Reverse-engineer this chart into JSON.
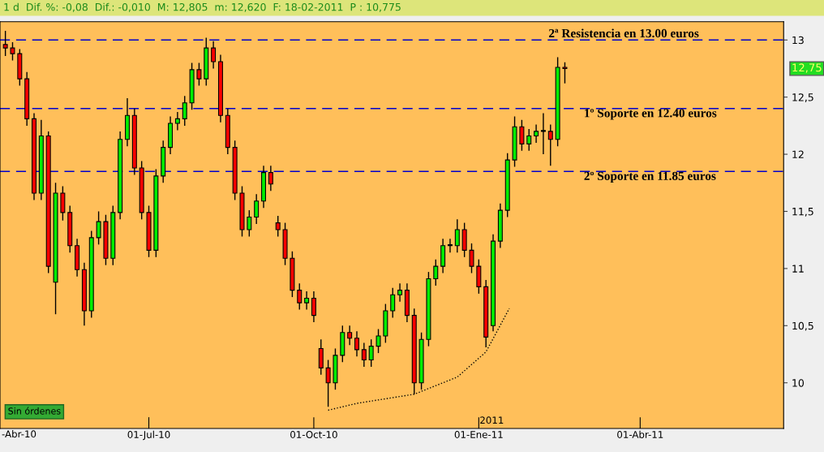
{
  "chart_data": {
    "type": "candlestick",
    "title": "1 d  Dif. %: -0,08  Dif.: -0,010  M: 12,805  m: 12,620  F: 18-02-2011  P : 10,775",
    "x": [
      "2010-04-12",
      "2010-04-16",
      "2010-04-20",
      "2010-04-24",
      "2010-04-28",
      "2010-05-02",
      "2010-05-06",
      "2010-05-10",
      "2010-05-14",
      "2010-05-18",
      "2010-05-22",
      "2010-05-26",
      "2010-05-30",
      "2010-06-03",
      "2010-06-07",
      "2010-06-11",
      "2010-06-15",
      "2010-06-19",
      "2010-06-23",
      "2010-06-27",
      "2010-07-01",
      "2010-07-05",
      "2010-07-09",
      "2010-07-13",
      "2010-07-17",
      "2010-07-21",
      "2010-07-25",
      "2010-07-29",
      "2010-08-02",
      "2010-08-06",
      "2010-08-10",
      "2010-08-14",
      "2010-08-18",
      "2010-08-22",
      "2010-08-26",
      "2010-08-30",
      "2010-09-03",
      "2010-09-07",
      "2010-09-11",
      "2010-09-15",
      "2010-09-19",
      "2010-09-23",
      "2010-09-27",
      "2010-10-01",
      "2010-10-05",
      "2010-10-09",
      "2010-10-13",
      "2010-10-17",
      "2010-10-21",
      "2010-10-25",
      "2010-10-29",
      "2010-11-02",
      "2010-11-06",
      "2010-11-10",
      "2010-11-14",
      "2010-11-18",
      "2010-11-22",
      "2010-11-26",
      "2010-11-30",
      "2010-12-04",
      "2010-12-08",
      "2010-12-12",
      "2010-12-16",
      "2010-12-20",
      "2010-12-24",
      "2010-12-28",
      "2011-01-01",
      "2011-01-05",
      "2011-01-09",
      "2011-01-13",
      "2011-01-17",
      "2011-01-21",
      "2011-01-25",
      "2011-01-29",
      "2011-02-02",
      "2011-02-06",
      "2011-02-10",
      "2011-02-14",
      "2011-02-18"
    ],
    "ohlc": [
      [
        12.96,
        13.08,
        12.86,
        12.93
      ],
      [
        12.93,
        12.98,
        12.82,
        12.88
      ],
      [
        12.88,
        12.92,
        12.6,
        12.66
      ],
      [
        12.66,
        12.72,
        12.25,
        12.31
      ],
      [
        12.31,
        12.36,
        11.6,
        11.66
      ],
      [
        11.66,
        12.3,
        11.6,
        12.16
      ],
      [
        12.16,
        12.2,
        10.96,
        11.02
      ],
      [
        10.88,
        11.75,
        10.6,
        11.66
      ],
      [
        11.66,
        11.72,
        11.42,
        11.49
      ],
      [
        11.49,
        11.55,
        11.14,
        11.2
      ],
      [
        11.2,
        11.26,
        10.93,
        10.99
      ],
      [
        10.99,
        11.05,
        10.5,
        10.63
      ],
      [
        10.63,
        11.33,
        10.57,
        11.27
      ],
      [
        11.27,
        11.5,
        11.21,
        11.41
      ],
      [
        11.41,
        11.47,
        11.03,
        11.09
      ],
      [
        11.09,
        11.55,
        11.03,
        11.49
      ],
      [
        11.49,
        12.2,
        11.43,
        12.13
      ],
      [
        12.13,
        12.49,
        12.07,
        12.34
      ],
      [
        12.34,
        12.4,
        11.82,
        11.88
      ],
      [
        11.88,
        11.94,
        11.43,
        11.49
      ],
      [
        11.49,
        11.55,
        11.1,
        11.16
      ],
      [
        11.16,
        11.87,
        11.1,
        11.81
      ],
      [
        11.81,
        12.12,
        11.75,
        12.06
      ],
      [
        12.06,
        12.33,
        12.0,
        12.27
      ],
      [
        12.27,
        12.37,
        12.21,
        12.31
      ],
      [
        12.31,
        12.51,
        12.25,
        12.45
      ],
      [
        12.45,
        12.8,
        12.39,
        12.74
      ],
      [
        12.74,
        12.8,
        12.6,
        12.66
      ],
      [
        12.66,
        13.02,
        12.6,
        12.93
      ],
      [
        12.93,
        12.99,
        12.75,
        12.81
      ],
      [
        12.81,
        12.87,
        12.28,
        12.34
      ],
      [
        12.34,
        12.4,
        12.0,
        12.06
      ],
      [
        12.06,
        12.12,
        11.6,
        11.66
      ],
      [
        11.66,
        11.72,
        11.28,
        11.34
      ],
      [
        11.34,
        11.51,
        11.28,
        11.45
      ],
      [
        11.45,
        11.65,
        11.39,
        11.59
      ],
      [
        11.59,
        11.9,
        11.53,
        11.84
      ],
      [
        11.84,
        11.9,
        11.68,
        11.74
      ],
      [
        11.4,
        11.46,
        11.28,
        11.34
      ],
      [
        11.34,
        11.4,
        11.03,
        11.09
      ],
      [
        11.09,
        11.15,
        10.75,
        10.81
      ],
      [
        10.81,
        10.87,
        10.64,
        10.7
      ],
      [
        10.7,
        10.8,
        10.64,
        10.74
      ],
      [
        10.74,
        10.8,
        10.53,
        10.59
      ],
      [
        10.3,
        10.38,
        10.07,
        10.13
      ],
      [
        10.13,
        10.2,
        9.79,
        10.0
      ],
      [
        10.0,
        10.3,
        9.94,
        10.24
      ],
      [
        10.24,
        10.5,
        10.18,
        10.44
      ],
      [
        10.44,
        10.5,
        10.33,
        10.39
      ],
      [
        10.39,
        10.45,
        10.23,
        10.29
      ],
      [
        10.29,
        10.35,
        10.14,
        10.2
      ],
      [
        10.2,
        10.38,
        10.14,
        10.32
      ],
      [
        10.32,
        10.47,
        10.26,
        10.41
      ],
      [
        10.41,
        10.69,
        10.35,
        10.63
      ],
      [
        10.63,
        10.83,
        10.57,
        10.77
      ],
      [
        10.77,
        10.87,
        10.71,
        10.81
      ],
      [
        10.81,
        10.87,
        10.53,
        10.59
      ],
      [
        10.59,
        10.65,
        9.9,
        10.0
      ],
      [
        10.0,
        10.44,
        9.94,
        10.38
      ],
      [
        10.38,
        10.97,
        10.32,
        10.91
      ],
      [
        10.91,
        11.08,
        10.85,
        11.02
      ],
      [
        11.02,
        11.26,
        10.96,
        11.2
      ],
      [
        11.2,
        11.26,
        11.14,
        11.2
      ],
      [
        11.2,
        11.43,
        11.14,
        11.34
      ],
      [
        11.34,
        11.4,
        11.1,
        11.16
      ],
      [
        11.16,
        11.22,
        10.96,
        11.02
      ],
      [
        11.02,
        11.08,
        10.78,
        10.84
      ],
      [
        10.84,
        10.9,
        10.31,
        10.4
      ],
      [
        10.5,
        11.3,
        10.45,
        11.24
      ],
      [
        11.24,
        11.57,
        11.18,
        11.51
      ],
      [
        11.51,
        12.01,
        11.45,
        11.95
      ],
      [
        11.95,
        12.33,
        11.89,
        12.24
      ],
      [
        12.24,
        12.3,
        12.03,
        12.09
      ],
      [
        12.09,
        12.22,
        12.03,
        12.16
      ],
      [
        12.16,
        12.26,
        12.1,
        12.2
      ],
      [
        12.2,
        12.36,
        12.0,
        12.2
      ],
      [
        12.2,
        12.26,
        11.9,
        12.13
      ],
      [
        12.13,
        12.85,
        12.07,
        12.76
      ],
      [
        12.76,
        12.805,
        12.62,
        12.75
      ]
    ],
    "series": [
      {
        "type": "line",
        "color": "#000000",
        "line_style": "dotted",
        "x": [
          "2010-10-09",
          "2010-10-25",
          "2010-11-26",
          "2010-12-20",
          "2011-01-05",
          "2011-01-18"
        ],
        "values": [
          9.76,
          9.82,
          9.9,
          10.05,
          10.27,
          10.65
        ]
      }
    ],
    "ylim": [
      9.6,
      13.16
    ],
    "yticks": [
      {
        "value": 10,
        "label": "10"
      },
      {
        "value": 10.5,
        "label": "10,5"
      },
      {
        "value": 11,
        "label": "11"
      },
      {
        "value": 11.5,
        "label": "11,5"
      },
      {
        "value": 12,
        "label": "12"
      },
      {
        "value": 12.5,
        "label": "12,5"
      },
      {
        "value": 13,
        "label": "13"
      }
    ],
    "xlim": [
      "2010-04-09",
      "2011-06-20"
    ],
    "xticks": [
      {
        "value": "2010-07-01",
        "label": "01-Jul-10"
      },
      {
        "value": "2010-10-01",
        "label": "01-Oct-10"
      },
      {
        "value": "2011-01-01",
        "label": "01-Ene-11"
      },
      {
        "value": "2011-04-01",
        "label": "01-Abr-11"
      }
    ],
    "ref_lines": [
      {
        "axis": "y",
        "value": 13.0,
        "label": "2ª Resistencia en 13.00 euros",
        "color": "#0000cc",
        "line_style": "dashed"
      },
      {
        "axis": "y",
        "value": 12.4,
        "label": "1º Soporte en 12.40 euros",
        "color": "#0000cc",
        "line_style": "dashed"
      },
      {
        "axis": "y",
        "value": 11.85,
        "label": "2º Soporte en 11.85 euros",
        "color": "#0000cc",
        "line_style": "dashed"
      }
    ],
    "annotations": [
      "12,75",
      "2011",
      "Sin órdenes",
      "-Abr-10"
    ],
    "grid": false,
    "legend": false
  }
}
